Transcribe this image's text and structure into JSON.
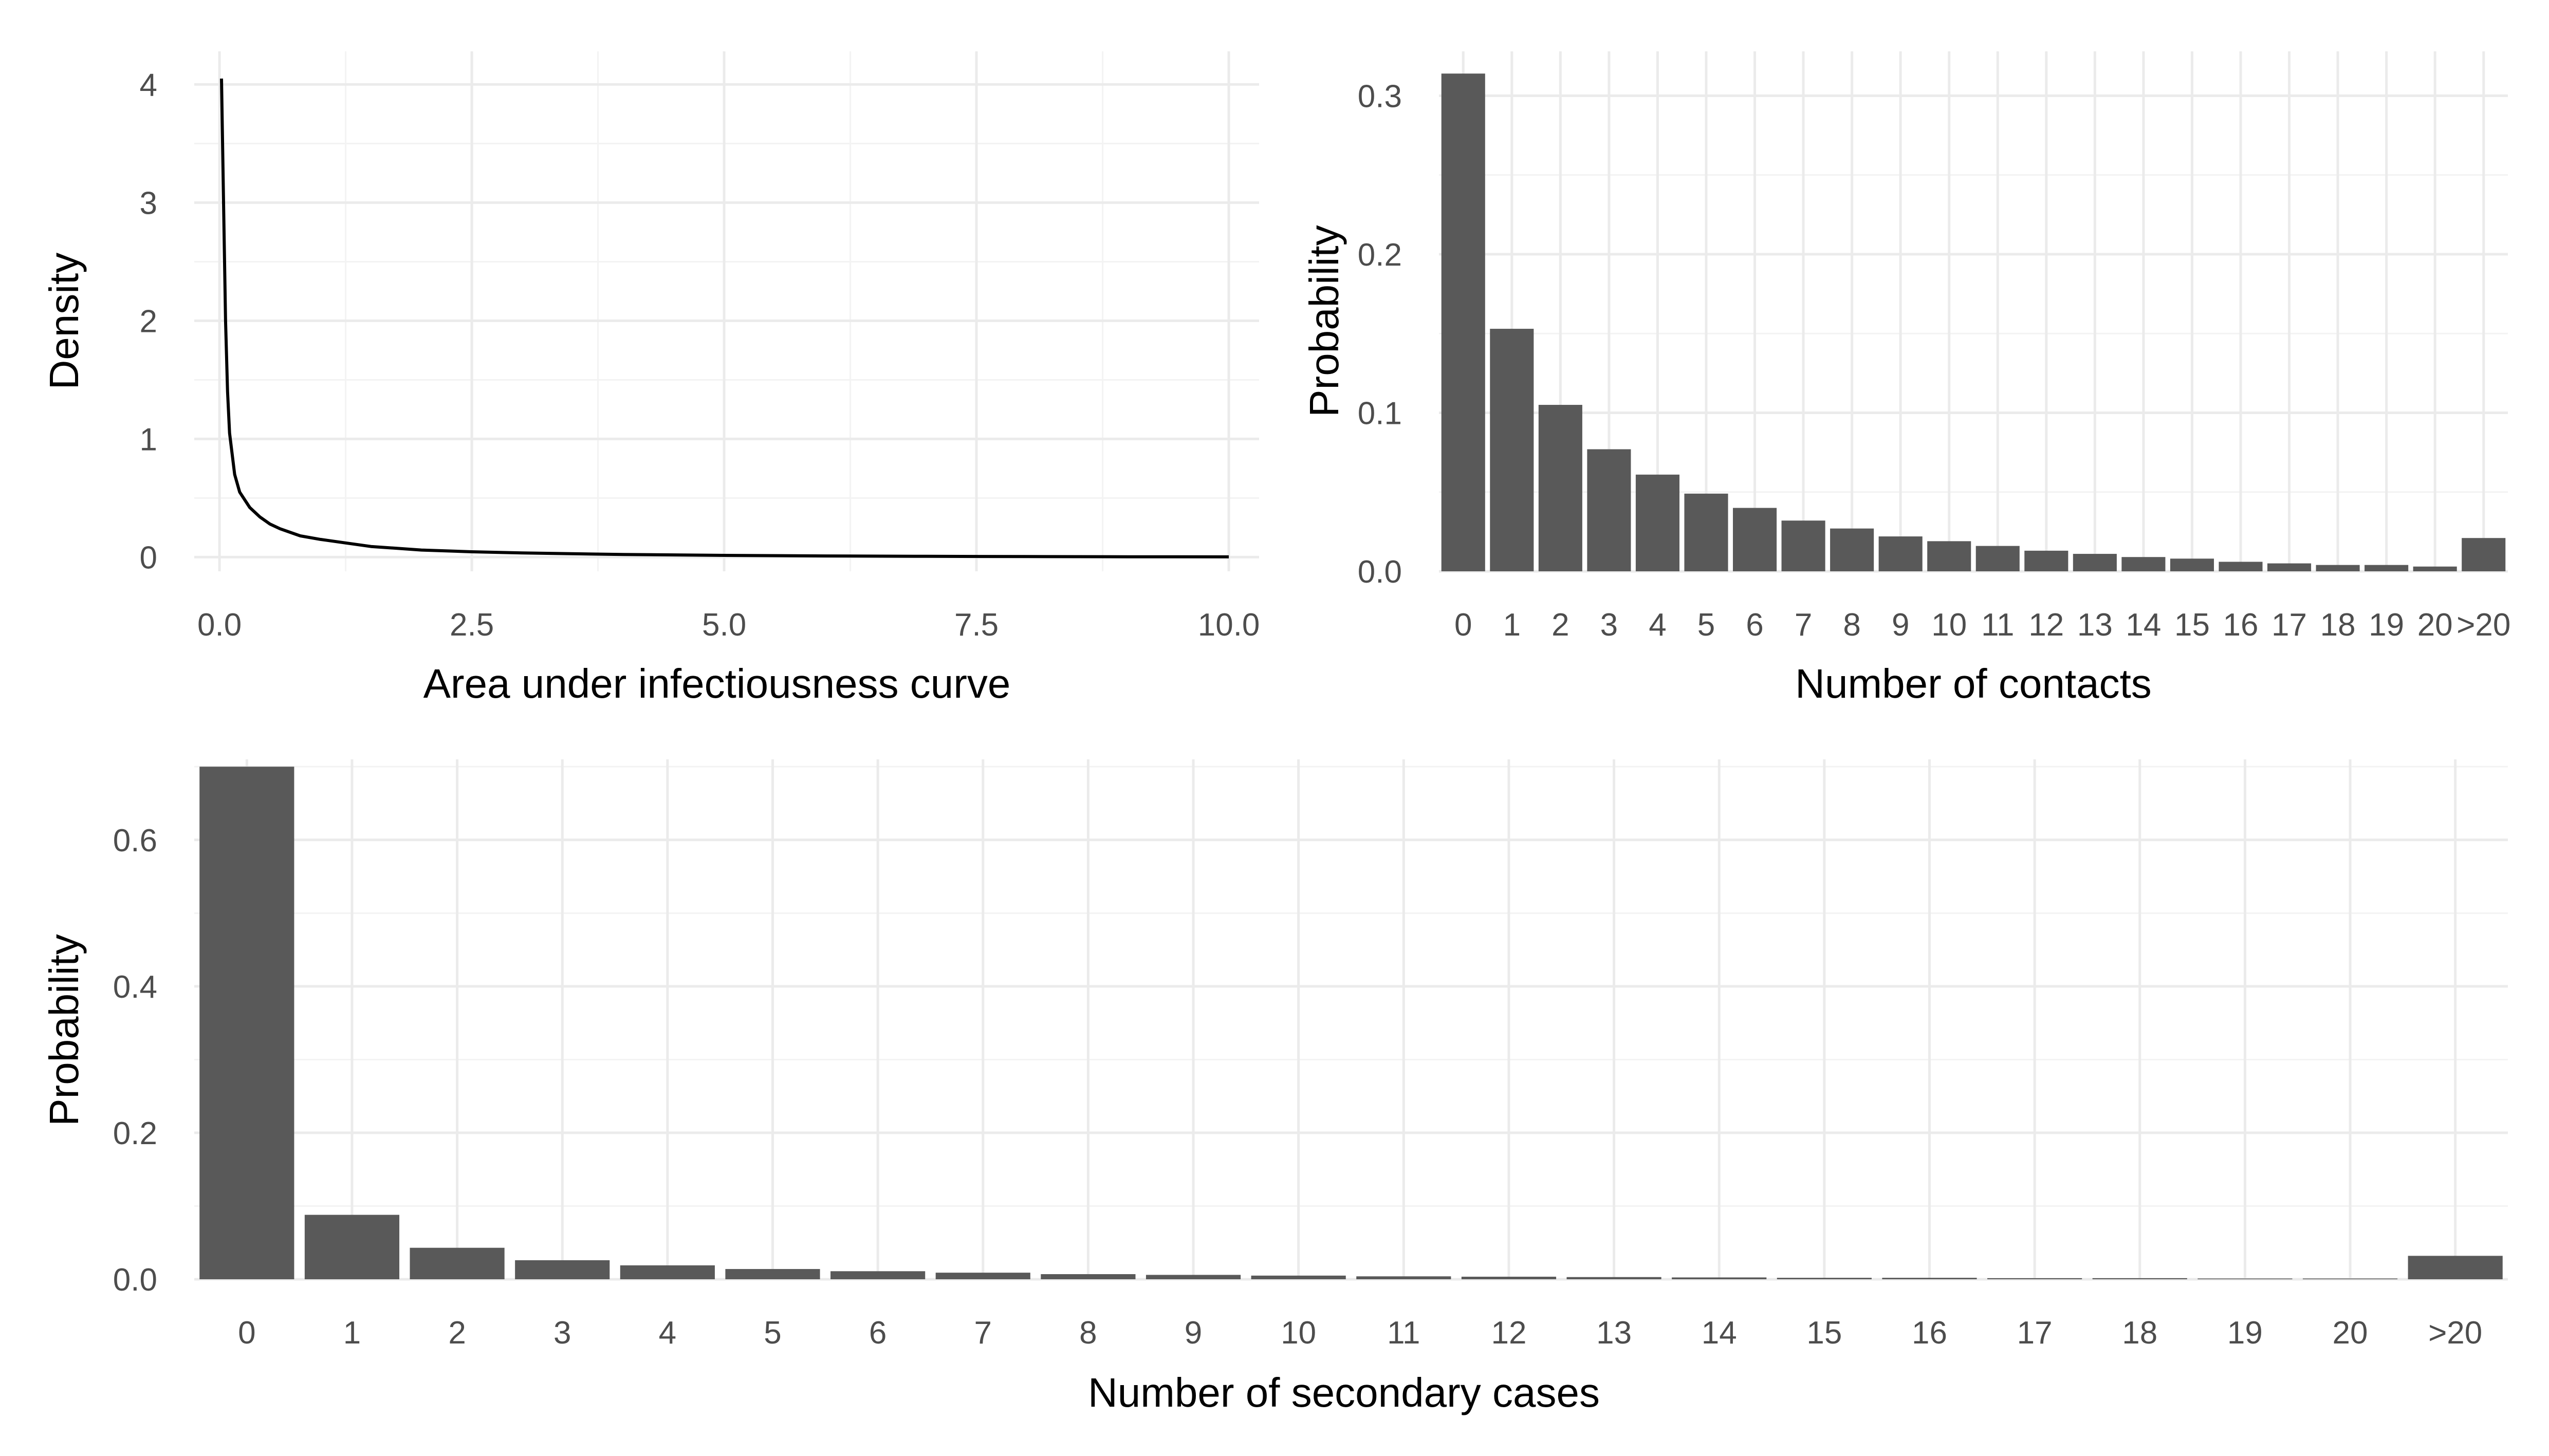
{
  "chart_data": [
    {
      "type": "line",
      "xlabel": "Area under infectiousness curve",
      "ylabel": "Density",
      "xlim": [
        0,
        10
      ],
      "ylim": [
        0,
        4.05
      ],
      "x_ticks": [
        "0.0",
        "2.5",
        "5.0",
        "7.5",
        "10.0"
      ],
      "y_ticks": [
        "0",
        "1",
        "2",
        "3",
        "4"
      ],
      "grid": true,
      "x": [
        0.02,
        0.04,
        0.06,
        0.08,
        0.1,
        0.15,
        0.2,
        0.3,
        0.4,
        0.5,
        0.6,
        0.8,
        1.0,
        1.25,
        1.5,
        2.0,
        2.5,
        3.0,
        4.0,
        5.0,
        6.0,
        7.0,
        8.0,
        9.0,
        10.0
      ],
      "y": [
        4.05,
        3.0,
        2.0,
        1.4,
        1.05,
        0.7,
        0.55,
        0.42,
        0.34,
        0.28,
        0.24,
        0.18,
        0.15,
        0.12,
        0.09,
        0.06,
        0.045,
        0.035,
        0.022,
        0.015,
        0.01,
        0.007,
        0.005,
        0.003,
        0.002
      ],
      "line_color": "#000000"
    },
    {
      "type": "bar",
      "xlabel": "Number of contacts",
      "ylabel": "Probability",
      "ylim": [
        0,
        0.315
      ],
      "y_ticks": [
        "0.0",
        "0.1",
        "0.2",
        "0.3"
      ],
      "grid": true,
      "categories": [
        "0",
        "1",
        "2",
        "3",
        "4",
        "5",
        "6",
        "7",
        "8",
        "9",
        "10",
        "11",
        "12",
        "13",
        "14",
        "15",
        "16",
        "17",
        "18",
        "19",
        "20",
        ">20"
      ],
      "values": [
        0.314,
        0.153,
        0.105,
        0.077,
        0.061,
        0.049,
        0.04,
        0.032,
        0.027,
        0.022,
        0.019,
        0.016,
        0.013,
        0.011,
        0.009,
        0.008,
        0.006,
        0.005,
        0.004,
        0.004,
        0.003,
        0.021
      ],
      "bar_color": "#595959"
    },
    {
      "type": "bar",
      "xlabel": "Number of secondary cases",
      "ylabel": "Probability",
      "ylim": [
        0,
        0.7
      ],
      "y_ticks": [
        "0.0",
        "0.2",
        "0.4",
        "0.6"
      ],
      "grid": true,
      "categories": [
        "0",
        "1",
        "2",
        "3",
        "4",
        "5",
        "6",
        "7",
        "8",
        "9",
        "10",
        "11",
        "12",
        "13",
        "14",
        "15",
        "16",
        "17",
        "18",
        "19",
        "20",
        ">20"
      ],
      "values": [
        0.7,
        0.088,
        0.043,
        0.026,
        0.019,
        0.014,
        0.011,
        0.009,
        0.007,
        0.006,
        0.005,
        0.004,
        0.0035,
        0.003,
        0.0025,
        0.002,
        0.002,
        0.0015,
        0.0015,
        0.001,
        0.001,
        0.032
      ],
      "bar_color": "#595959"
    }
  ]
}
